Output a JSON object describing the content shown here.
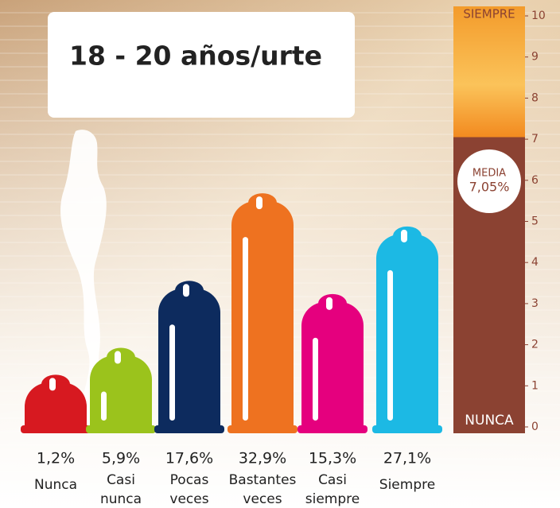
{
  "chart_data": {
    "type": "bar",
    "title": "18 - 20 años/urte",
    "categories": [
      [
        "Nunca"
      ],
      [
        "Casi",
        "nunca"
      ],
      [
        "Pocas",
        "veces"
      ],
      [
        "Bastantes",
        "veces"
      ],
      [
        "Casi",
        "siempre"
      ],
      [
        "Siempre"
      ]
    ],
    "values": [
      1.2,
      5.9,
      17.6,
      32.9,
      15.3,
      27.1
    ],
    "value_labels": [
      "1,2%",
      "5,9%",
      "17,6%",
      "32,9%",
      "15,3%",
      "27,1%"
    ],
    "colors": [
      "#d71920",
      "#9bc31c",
      "#0d2b5e",
      "#ee7220",
      "#e5007e",
      "#1cb9e4"
    ],
    "gauge": {
      "ylim": [
        0,
        10
      ],
      "yticks": [
        0,
        1,
        2,
        3,
        4,
        5,
        6,
        7,
        8,
        9,
        10
      ],
      "top_label": "SIEMPRE",
      "bottom_label": "NUNCA",
      "mean_label": "MEDIA",
      "mean": 7.05,
      "mean_value_label": "7,05%"
    }
  }
}
